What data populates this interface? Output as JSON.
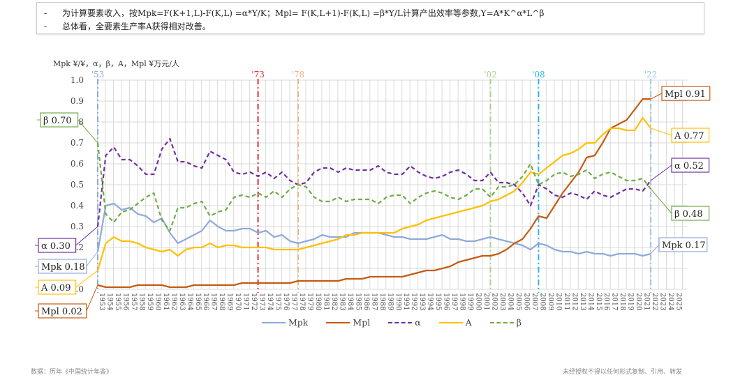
{
  "notes": [
    {
      "bullet": "-",
      "text": "为计算要素收入，按Mpk=F(K+1,L)-F(K,L) =α*Y/K；Mpl= F(K,L+1)-F(K,L) =β*Y/L计算产出效率等参数,Y=A*K^α*L^β"
    },
    {
      "bullet": "-",
      "text": "总体看，全要素生产率A获得相对改善。"
    }
  ],
  "axis_title": "Mpk ¥/¥，α，β，A，Mpl ¥万元/人",
  "footer": {
    "source": "数据：历年《中国统计年鉴》",
    "copyright": "未经授权不得以任何形式复制、引用、转发"
  },
  "colors": {
    "Mpk": "#8faadc",
    "Mpl": "#c55a11",
    "alpha": "#7030a0",
    "A": "#ffc000",
    "beta": "#70ad47",
    "grid": "#d9d9d9"
  },
  "chart_data": {
    "type": "line",
    "title": "",
    "xlabel": "",
    "ylabel": "Mpk ¥/¥，α，β，A，Mpl ¥万元/人",
    "ylim": [
      0.0,
      1.0
    ],
    "yticks": [
      "0.0",
      "0.1",
      "0.2",
      "0.3",
      "0.4",
      "0.5",
      "0.6",
      "0.7",
      "0.8",
      "0.9",
      "1.0"
    ],
    "x_tick_range": [
      1953,
      2025
    ],
    "grid": true,
    "legend_position": "bottom",
    "x": [
      1953,
      1954,
      1955,
      1956,
      1957,
      1958,
      1959,
      1960,
      1961,
      1962,
      1963,
      1964,
      1965,
      1966,
      1967,
      1968,
      1969,
      1970,
      1971,
      1972,
      1973,
      1974,
      1975,
      1976,
      1977,
      1978,
      1979,
      1980,
      1981,
      1982,
      1983,
      1984,
      1985,
      1986,
      1987,
      1988,
      1989,
      1990,
      1991,
      1992,
      1993,
      1994,
      1995,
      1996,
      1997,
      1998,
      1999,
      2000,
      2001,
      2002,
      2003,
      2004,
      2005,
      2006,
      2007,
      2008,
      2009,
      2010,
      2011,
      2012,
      2013,
      2014,
      2015,
      2016,
      2017,
      2018,
      2019,
      2020,
      2021,
      2022
    ],
    "series": [
      {
        "name": "Mpk",
        "style": "solid",
        "values": [
          0.18,
          0.4,
          0.41,
          0.38,
          0.39,
          0.36,
          0.35,
          0.32,
          0.34,
          0.27,
          0.22,
          0.24,
          0.26,
          0.28,
          0.33,
          0.3,
          0.28,
          0.28,
          0.29,
          0.29,
          0.27,
          0.28,
          0.25,
          0.26,
          0.23,
          0.22,
          0.23,
          0.24,
          0.26,
          0.25,
          0.25,
          0.25,
          0.27,
          0.27,
          0.27,
          0.27,
          0.26,
          0.25,
          0.25,
          0.24,
          0.24,
          0.24,
          0.25,
          0.26,
          0.24,
          0.24,
          0.23,
          0.23,
          0.24,
          0.25,
          0.24,
          0.23,
          0.22,
          0.21,
          0.19,
          0.22,
          0.21,
          0.19,
          0.18,
          0.18,
          0.17,
          0.18,
          0.17,
          0.17,
          0.16,
          0.17,
          0.17,
          0.17,
          0.16,
          0.17
        ]
      },
      {
        "name": "Mpl",
        "style": "solid",
        "values": [
          0.02,
          0.01,
          0.01,
          0.01,
          0.01,
          0.02,
          0.02,
          0.02,
          0.02,
          0.01,
          0.01,
          0.01,
          0.02,
          0.02,
          0.02,
          0.02,
          0.02,
          0.02,
          0.03,
          0.03,
          0.03,
          0.03,
          0.03,
          0.03,
          0.03,
          0.04,
          0.04,
          0.04,
          0.04,
          0.04,
          0.04,
          0.05,
          0.05,
          0.05,
          0.06,
          0.06,
          0.06,
          0.06,
          0.06,
          0.07,
          0.08,
          0.09,
          0.09,
          0.1,
          0.11,
          0.13,
          0.14,
          0.15,
          0.16,
          0.16,
          0.17,
          0.19,
          0.22,
          0.24,
          0.29,
          0.35,
          0.34,
          0.4,
          0.46,
          0.51,
          0.56,
          0.63,
          0.64,
          0.7,
          0.77,
          0.79,
          0.81,
          0.86,
          0.91,
          0.91
        ]
      },
      {
        "name": "α",
        "style": "dashed",
        "values": [
          0.3,
          0.64,
          0.68,
          0.62,
          0.62,
          0.59,
          0.55,
          0.55,
          0.67,
          0.72,
          0.61,
          0.61,
          0.59,
          0.58,
          0.66,
          0.64,
          0.62,
          0.56,
          0.55,
          0.56,
          0.54,
          0.56,
          0.53,
          0.56,
          0.52,
          0.5,
          0.51,
          0.56,
          0.58,
          0.58,
          0.56,
          0.58,
          0.57,
          0.57,
          0.57,
          0.59,
          0.56,
          0.55,
          0.55,
          0.59,
          0.56,
          0.54,
          0.53,
          0.54,
          0.56,
          0.57,
          0.55,
          0.52,
          0.52,
          0.56,
          0.51,
          0.51,
          0.5,
          0.46,
          0.4,
          0.5,
          0.48,
          0.45,
          0.44,
          0.46,
          0.45,
          0.43,
          0.47,
          0.45,
          0.44,
          0.46,
          0.48,
          0.48,
          0.47,
          0.52
        ]
      },
      {
        "name": "A",
        "style": "solid",
        "values": [
          0.09,
          0.22,
          0.25,
          0.23,
          0.23,
          0.22,
          0.2,
          0.19,
          0.18,
          0.19,
          0.16,
          0.19,
          0.2,
          0.2,
          0.22,
          0.2,
          0.21,
          0.21,
          0.2,
          0.2,
          0.2,
          0.2,
          0.19,
          0.19,
          0.19,
          0.19,
          0.2,
          0.21,
          0.22,
          0.23,
          0.24,
          0.26,
          0.26,
          0.27,
          0.27,
          0.27,
          0.27,
          0.27,
          0.29,
          0.3,
          0.31,
          0.33,
          0.34,
          0.35,
          0.36,
          0.37,
          0.38,
          0.39,
          0.4,
          0.42,
          0.43,
          0.45,
          0.47,
          0.51,
          0.56,
          0.55,
          0.58,
          0.61,
          0.64,
          0.65,
          0.67,
          0.7,
          0.7,
          0.74,
          0.77,
          0.77,
          0.76,
          0.76,
          0.82,
          0.77
        ]
      },
      {
        "name": "β",
        "style": "dashed",
        "values": [
          0.7,
          0.36,
          0.32,
          0.37,
          0.38,
          0.41,
          0.44,
          0.46,
          0.33,
          0.28,
          0.39,
          0.39,
          0.41,
          0.42,
          0.35,
          0.37,
          0.38,
          0.44,
          0.45,
          0.44,
          0.46,
          0.44,
          0.47,
          0.44,
          0.48,
          0.5,
          0.49,
          0.44,
          0.42,
          0.42,
          0.44,
          0.42,
          0.43,
          0.43,
          0.43,
          0.41,
          0.44,
          0.45,
          0.45,
          0.41,
          0.44,
          0.46,
          0.47,
          0.46,
          0.44,
          0.43,
          0.45,
          0.48,
          0.48,
          0.44,
          0.49,
          0.49,
          0.5,
          0.54,
          0.6,
          0.5,
          0.52,
          0.55,
          0.56,
          0.54,
          0.55,
          0.57,
          0.53,
          0.55,
          0.56,
          0.54,
          0.52,
          0.52,
          0.53,
          0.48
        ]
      }
    ],
    "vertical_markers": [
      {
        "label": "'53",
        "year": 1953,
        "color": "#8faadc"
      },
      {
        "label": "'73",
        "year": 1973,
        "color": "#e0303a"
      },
      {
        "label": "'78",
        "year": 1978,
        "color": "#f4b183"
      },
      {
        "label": "'02",
        "year": 2002,
        "color": "#a9d18e"
      },
      {
        "label": "'08",
        "year": 2008,
        "color": "#2fb4e0"
      },
      {
        "label": "'22",
        "year": 2022,
        "color": "#9dc3e6"
      }
    ],
    "annotations": [
      {
        "text": "β 0.70",
        "series": "β",
        "side": "left"
      },
      {
        "text": "α 0.30",
        "series": "α",
        "side": "left"
      },
      {
        "text": "Mpk 0.18",
        "series": "Mpk",
        "side": "left"
      },
      {
        "text": "A 0.09",
        "series": "A",
        "side": "left"
      },
      {
        "text": "Mpl 0.02",
        "series": "Mpl",
        "side": "left"
      },
      {
        "text": "Mpl 0.91",
        "series": "Mpl",
        "side": "right"
      },
      {
        "text": "A 0.77",
        "series": "A",
        "side": "right"
      },
      {
        "text": "α 0.52",
        "series": "α",
        "side": "right"
      },
      {
        "text": "β 0.48",
        "series": "β",
        "side": "right"
      },
      {
        "text": "Mpk 0.17",
        "series": "Mpk",
        "side": "right"
      }
    ],
    "legend": [
      "Mpk",
      "Mpl",
      "α",
      "A",
      "β"
    ]
  }
}
